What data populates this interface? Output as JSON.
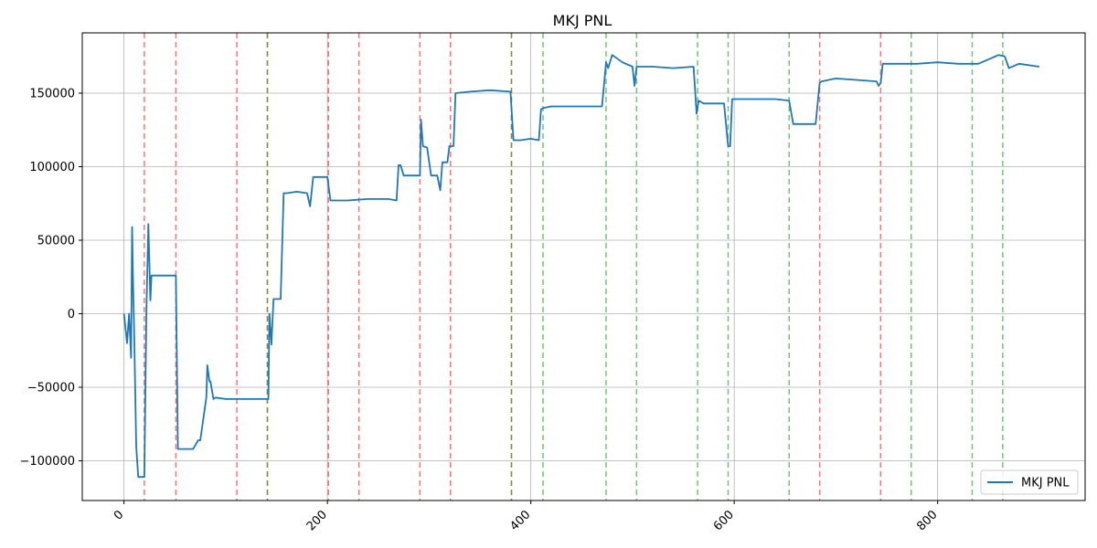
{
  "chart_data": {
    "type": "line",
    "title": "MKJ PNL",
    "xlabel": "",
    "ylabel": "",
    "xlim": [
      -41,
      945
    ],
    "ylim": [
      -127000,
      191000
    ],
    "x_ticks": [
      0,
      200,
      400,
      600,
      800
    ],
    "y_ticks": [
      -100000,
      -50000,
      0,
      50000,
      100000,
      150000
    ],
    "x_tick_labels": [
      "0",
      "200",
      "400",
      "600",
      "800"
    ],
    "y_tick_labels": [
      "−100000",
      "−50000",
      "0",
      "50000",
      "100000",
      "150000"
    ],
    "grid": true,
    "legend": {
      "position": "lower-right",
      "entries": [
        "MKJ PNL"
      ]
    },
    "colors": {
      "series": "#1f77b4",
      "red_marker": "#ff0000",
      "green_marker": "#2ca02c"
    },
    "series": [
      {
        "name": "MKJ PNL",
        "x": [
          0,
          3,
          5,
          7,
          8,
          9,
          10,
          12,
          14,
          16,
          18,
          20,
          22,
          24,
          26,
          27,
          28,
          30,
          40,
          51,
          53,
          56,
          60,
          68,
          73,
          75,
          81,
          82,
          84,
          85,
          88,
          90,
          100,
          120,
          140,
          142,
          143,
          145,
          147,
          148,
          150,
          154,
          157,
          160,
          170,
          180,
          183,
          186,
          188,
          190,
          200,
          203,
          205,
          210,
          220,
          240,
          260,
          268,
          270,
          272,
          275,
          280,
          288,
          291,
          292,
          294,
          298,
          302,
          308,
          311,
          313,
          318,
          320,
          324,
          326,
          340,
          360,
          380,
          383,
          385,
          390,
          400,
          408,
          410,
          413,
          420,
          440,
          460,
          470,
          474,
          476,
          480,
          490,
          500,
          502,
          504,
          510,
          520,
          540,
          560,
          563,
          565,
          570,
          590,
          594,
          596,
          598,
          600,
          620,
          640,
          654,
          658,
          670,
          680,
          684,
          686,
          700,
          720,
          740,
          742,
          744,
          746,
          760,
          780,
          800,
          820,
          840,
          860,
          866,
          870,
          880,
          900
        ],
        "y": [
          0,
          -20000,
          0,
          -30000,
          59000,
          20000,
          -10000,
          -90000,
          -111000,
          -111000,
          -111000,
          -111000,
          0,
          61000,
          9000,
          26000,
          26000,
          26000,
          26000,
          26000,
          -92000,
          -92000,
          -92000,
          -92000,
          -86000,
          -86000,
          -57000,
          -35000,
          -46000,
          -46000,
          -58000,
          -57000,
          -58000,
          -58000,
          -58000,
          -58000,
          0,
          -21000,
          10000,
          10000,
          10000,
          10000,
          82000,
          82000,
          83000,
          82000,
          73000,
          93000,
          93000,
          93000,
          93000,
          77000,
          77000,
          77000,
          77000,
          78000,
          78000,
          77000,
          101000,
          101000,
          94000,
          94000,
          94000,
          94000,
          132000,
          114000,
          113000,
          94000,
          94000,
          84000,
          103000,
          103000,
          114000,
          114000,
          150000,
          151000,
          152000,
          151000,
          118000,
          118000,
          118000,
          119000,
          118000,
          139000,
          140000,
          141000,
          141000,
          141000,
          141000,
          171000,
          167000,
          176000,
          171000,
          168000,
          155000,
          168000,
          168000,
          168000,
          167000,
          168000,
          136000,
          145000,
          143000,
          143000,
          114000,
          114000,
          146000,
          146000,
          146000,
          146000,
          145000,
          129000,
          129000,
          129000,
          157000,
          158000,
          160000,
          159000,
          158000,
          155000,
          157000,
          170000,
          170000,
          170000,
          171000,
          170000,
          170000,
          176000,
          175000,
          167000,
          170000,
          168000
        ]
      }
    ],
    "red_vlines": [
      20,
      51,
      111,
      141,
      201,
      231,
      291,
      321,
      381,
      684,
      744
    ],
    "green_vlines": [
      141,
      381,
      412,
      474,
      504,
      564,
      594,
      654,
      774,
      834,
      864
    ]
  }
}
